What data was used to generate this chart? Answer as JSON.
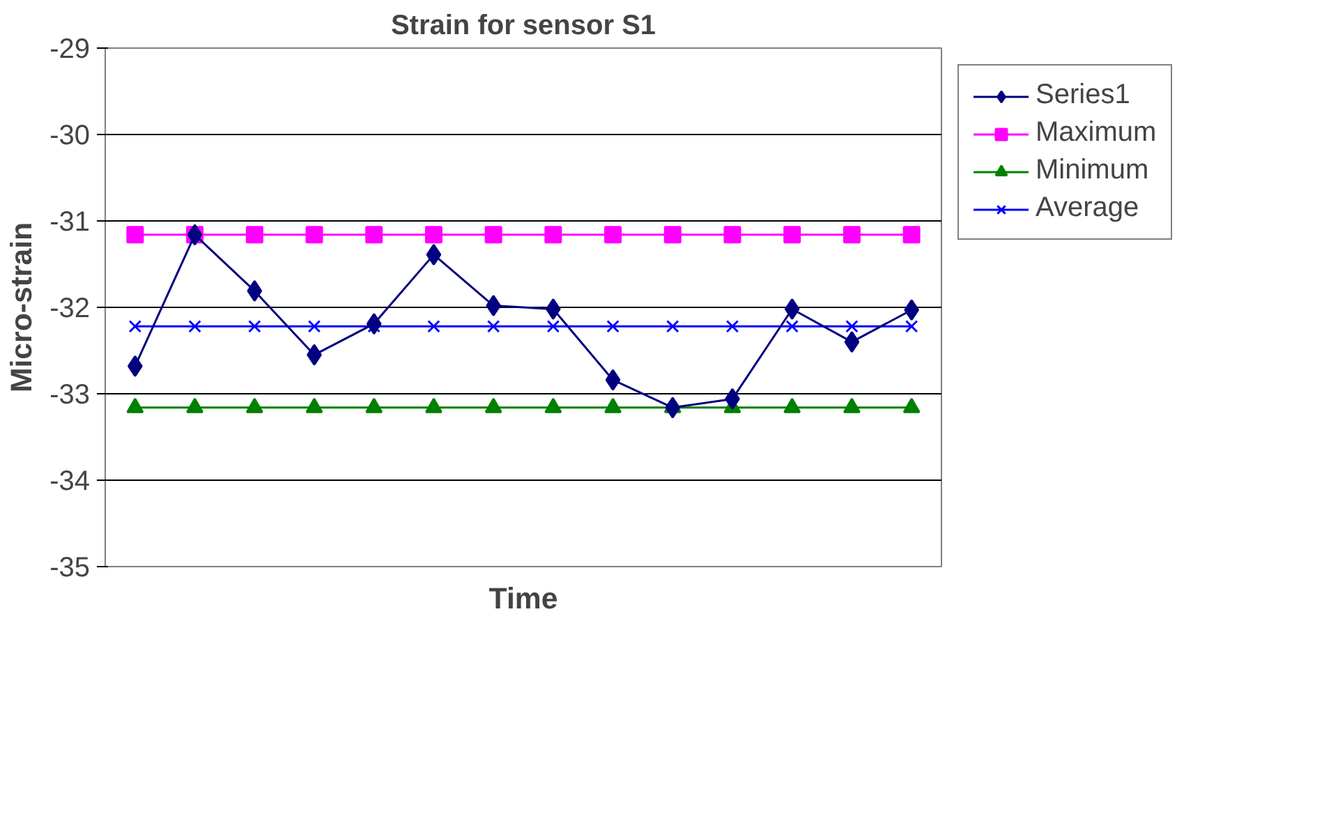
{
  "chart_data": {
    "type": "line",
    "title": "Strain for sensor S1",
    "xlabel": "Time",
    "ylabel": "Micro-strain",
    "categories": [
      null,
      null,
      null,
      null,
      null,
      null,
      null,
      null,
      null,
      null,
      null,
      null,
      null,
      null
    ],
    "series": [
      {
        "name": "Series1",
        "color": "#000080",
        "marker": "diamond",
        "values": [
          -32.68,
          -31.16,
          -31.81,
          -32.55,
          -32.19,
          -31.39,
          -31.98,
          -32.02,
          -32.84,
          -33.16,
          -33.06,
          -32.02,
          -32.4,
          -32.03
        ]
      },
      {
        "name": "Maximum",
        "color": "#ff00ff",
        "marker": "square",
        "values": [
          -31.16,
          -31.16,
          -31.16,
          -31.16,
          -31.16,
          -31.16,
          -31.16,
          -31.16,
          -31.16,
          -31.16,
          -31.16,
          -31.16,
          -31.16,
          -31.16
        ]
      },
      {
        "name": "Minimum",
        "color": "#008000",
        "marker": "triangle",
        "values": [
          -33.16,
          -33.16,
          -33.16,
          -33.16,
          -33.16,
          -33.16,
          -33.16,
          -33.16,
          -33.16,
          -33.16,
          -33.16,
          -33.16,
          -33.16,
          -33.16
        ]
      },
      {
        "name": "Average",
        "color": "#0000ff",
        "marker": "cross",
        "values": [
          -32.22,
          -32.22,
          -32.22,
          -32.22,
          -32.22,
          -32.22,
          -32.22,
          -32.22,
          -32.22,
          -32.22,
          -32.22,
          -32.22,
          -32.22,
          -32.22
        ]
      }
    ],
    "ylim": [
      -35,
      -29
    ],
    "yticks": [
      -35,
      -34,
      -33,
      -32,
      -31,
      -30,
      -29
    ],
    "grid": "y",
    "legend": "right",
    "line_style": "solid"
  }
}
